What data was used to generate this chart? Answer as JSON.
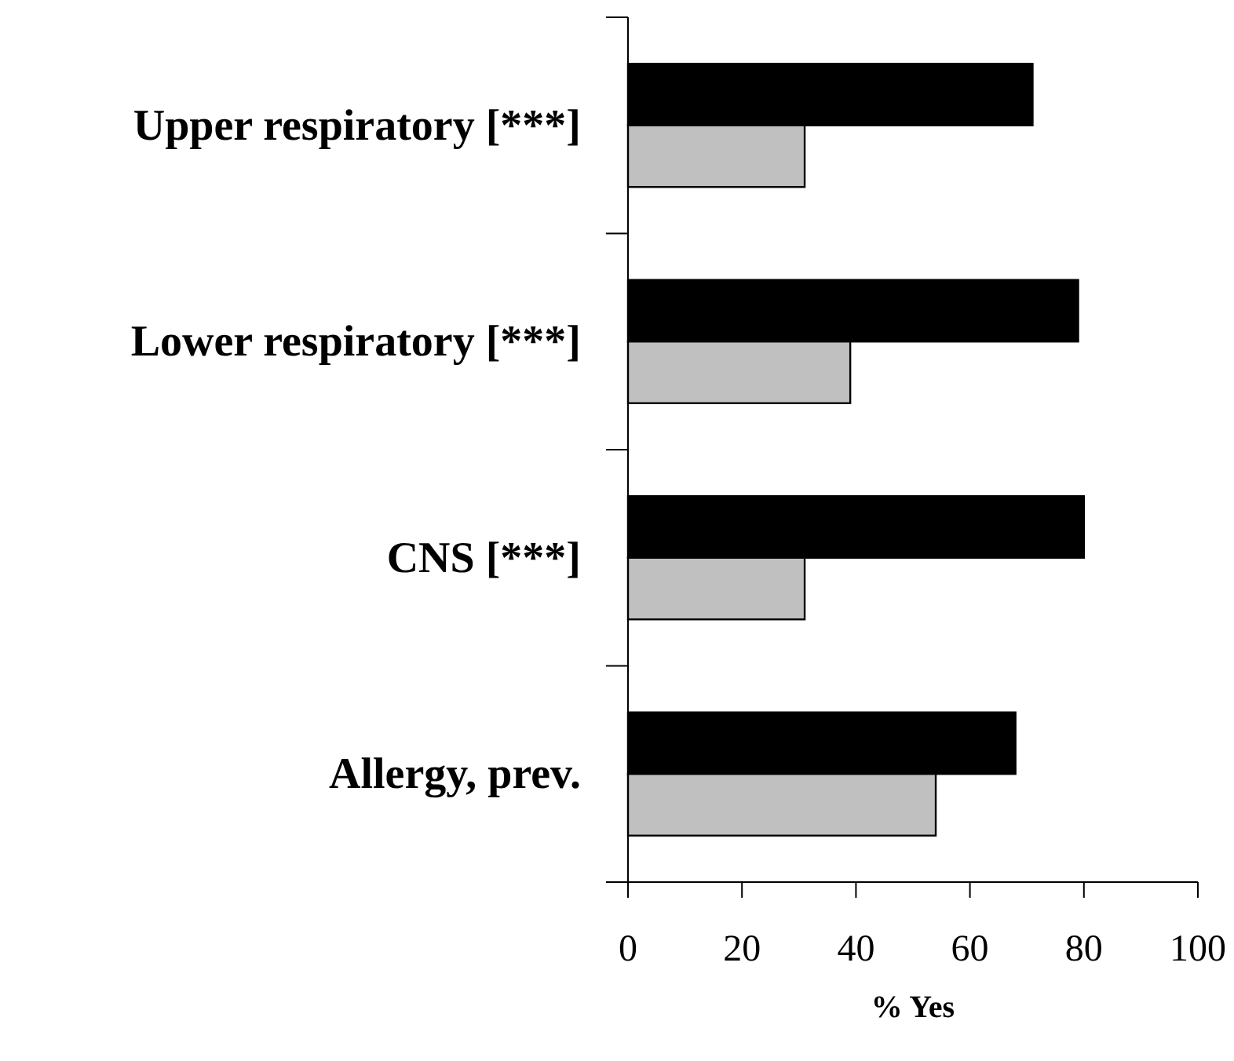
{
  "chart_data": {
    "type": "bar",
    "orientation": "horizontal",
    "xlabel": "% Yes",
    "categories": [
      "Upper respiratory [***]",
      "Lower respiratory [***]",
      "CNS [***]",
      "Allergy, prev."
    ],
    "series": [
      {
        "color": "#000000",
        "values": [
          71,
          79,
          80,
          68
        ]
      },
      {
        "color": "#c0c0c0",
        "values": [
          31,
          39,
          31,
          54
        ]
      }
    ],
    "xlim": [
      0,
      100
    ],
    "xticks": [
      0,
      20,
      40,
      60,
      80,
      100
    ],
    "grid": false
  }
}
